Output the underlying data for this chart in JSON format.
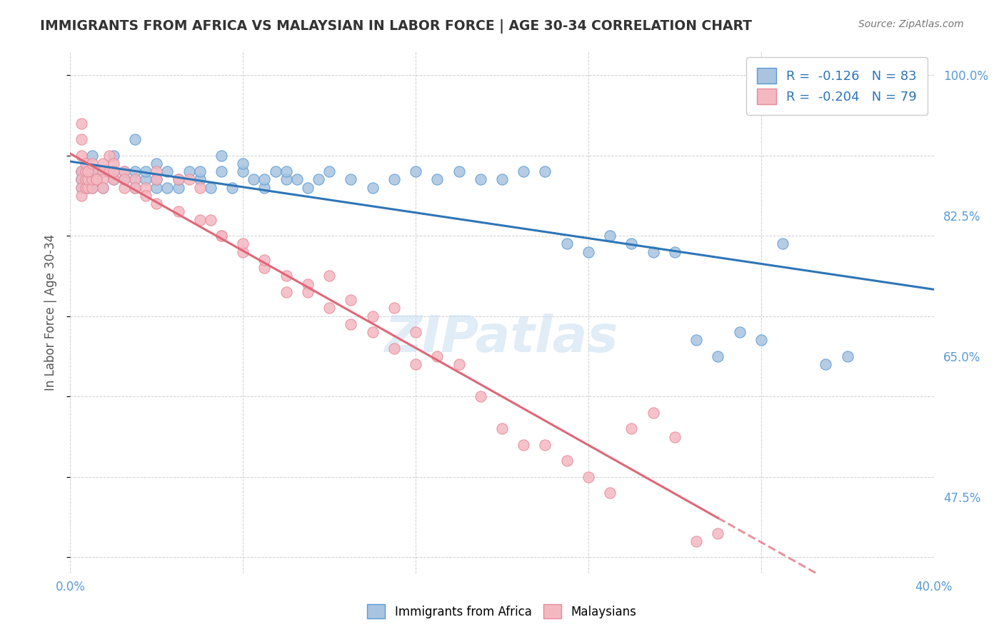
{
  "title": "IMMIGRANTS FROM AFRICA VS MALAYSIAN IN LABOR FORCE | AGE 30-34 CORRELATION CHART",
  "source": "Source: ZipAtlas.com",
  "xlabel": "",
  "ylabel": "In Labor Force | Age 30-34",
  "xlim": [
    0.0,
    0.4
  ],
  "ylim": [
    0.38,
    1.03
  ],
  "yticks": [
    0.4,
    0.475,
    0.55,
    0.625,
    0.65,
    0.7,
    0.775,
    0.825,
    0.9,
    0.975,
    1.0
  ],
  "ytick_labels": [
    "",
    "47.5%",
    "",
    "",
    "65.0%",
    "",
    "",
    "82.5%",
    "",
    "",
    "100.0%"
  ],
  "xtick_labels": [
    "0.0%",
    "",
    "",
    "",
    "",
    "40.0%"
  ],
  "blue_R": -0.126,
  "blue_N": 83,
  "pink_R": -0.204,
  "pink_N": 79,
  "blue_scatter_x": [
    0.01,
    0.01,
    0.015,
    0.015,
    0.02,
    0.02,
    0.02,
    0.025,
    0.025,
    0.03,
    0.03,
    0.03,
    0.03,
    0.035,
    0.035,
    0.04,
    0.04,
    0.04,
    0.045,
    0.045,
    0.05,
    0.05,
    0.055,
    0.06,
    0.06,
    0.065,
    0.07,
    0.07,
    0.075,
    0.08,
    0.08,
    0.085,
    0.09,
    0.09,
    0.095,
    0.1,
    0.1,
    0.105,
    0.11,
    0.115,
    0.12,
    0.13,
    0.14,
    0.15,
    0.16,
    0.17,
    0.18,
    0.19,
    0.2,
    0.21,
    0.22,
    0.23,
    0.24,
    0.25,
    0.26,
    0.27,
    0.28,
    0.29,
    0.3,
    0.31,
    0.32,
    0.33,
    0.35,
    0.36,
    0.37,
    0.005,
    0.005,
    0.005,
    0.005,
    0.005,
    0.007,
    0.007,
    0.007,
    0.007,
    0.007,
    0.008,
    0.008,
    0.008,
    0.01,
    0.01,
    0.01,
    0.012,
    0.012
  ],
  "blue_scatter_y": [
    0.88,
    0.9,
    0.88,
    0.86,
    0.87,
    0.88,
    0.9,
    0.87,
    0.88,
    0.86,
    0.87,
    0.88,
    0.92,
    0.87,
    0.88,
    0.86,
    0.87,
    0.89,
    0.86,
    0.88,
    0.86,
    0.87,
    0.88,
    0.87,
    0.88,
    0.86,
    0.88,
    0.9,
    0.86,
    0.88,
    0.89,
    0.87,
    0.86,
    0.87,
    0.88,
    0.87,
    0.88,
    0.87,
    0.86,
    0.87,
    0.88,
    0.87,
    0.86,
    0.87,
    0.88,
    0.87,
    0.88,
    0.87,
    0.87,
    0.88,
    0.88,
    0.79,
    0.78,
    0.8,
    0.79,
    0.78,
    0.78,
    0.67,
    0.65,
    0.68,
    0.67,
    0.79,
    0.64,
    0.65,
    0.97,
    0.88,
    0.87,
    0.86,
    0.87,
    0.88,
    0.87,
    0.88,
    0.86,
    0.87,
    0.88,
    0.86,
    0.87,
    0.88,
    0.87,
    0.88,
    0.86,
    0.87,
    0.88
  ],
  "pink_scatter_x": [
    0.005,
    0.005,
    0.005,
    0.005,
    0.005,
    0.007,
    0.007,
    0.007,
    0.007,
    0.008,
    0.008,
    0.01,
    0.01,
    0.01,
    0.012,
    0.015,
    0.015,
    0.015,
    0.018,
    0.018,
    0.02,
    0.02,
    0.025,
    0.025,
    0.03,
    0.035,
    0.04,
    0.04,
    0.05,
    0.055,
    0.06,
    0.065,
    0.07,
    0.08,
    0.09,
    0.1,
    0.11,
    0.12,
    0.13,
    0.14,
    0.15,
    0.16,
    0.17,
    0.18,
    0.19,
    0.2,
    0.21,
    0.22,
    0.23,
    0.24,
    0.25,
    0.26,
    0.27,
    0.28,
    0.29,
    0.3,
    0.005,
    0.005,
    0.008,
    0.01,
    0.012,
    0.015,
    0.02,
    0.025,
    0.03,
    0.035,
    0.04,
    0.05,
    0.06,
    0.07,
    0.08,
    0.09,
    0.1,
    0.11,
    0.12,
    0.13,
    0.14,
    0.15,
    0.16
  ],
  "pink_scatter_y": [
    0.88,
    0.9,
    0.87,
    0.86,
    0.85,
    0.86,
    0.87,
    0.88,
    0.89,
    0.86,
    0.87,
    0.86,
    0.87,
    0.88,
    0.87,
    0.89,
    0.88,
    0.87,
    0.9,
    0.88,
    0.87,
    0.89,
    0.88,
    0.86,
    0.87,
    0.86,
    0.88,
    0.87,
    0.87,
    0.87,
    0.86,
    0.82,
    0.8,
    0.78,
    0.76,
    0.73,
    0.74,
    0.75,
    0.72,
    0.7,
    0.71,
    0.68,
    0.65,
    0.64,
    0.6,
    0.56,
    0.54,
    0.54,
    0.52,
    0.5,
    0.48,
    0.56,
    0.58,
    0.55,
    0.42,
    0.43,
    0.92,
    0.94,
    0.88,
    0.89,
    0.87,
    0.86,
    0.88,
    0.87,
    0.86,
    0.85,
    0.84,
    0.83,
    0.82,
    0.8,
    0.79,
    0.77,
    0.75,
    0.73,
    0.71,
    0.69,
    0.68,
    0.66,
    0.64
  ],
  "blue_color": "#a8c4e0",
  "blue_edge_color": "#5b9bd5",
  "blue_line_color": "#2e75b6",
  "pink_color": "#f4b8c1",
  "pink_edge_color": "#e88a9a",
  "pink_line_color": "#e06677",
  "watermark": "ZIPatlas",
  "bg_color": "#ffffff",
  "grid_color": "#d0d0d0"
}
